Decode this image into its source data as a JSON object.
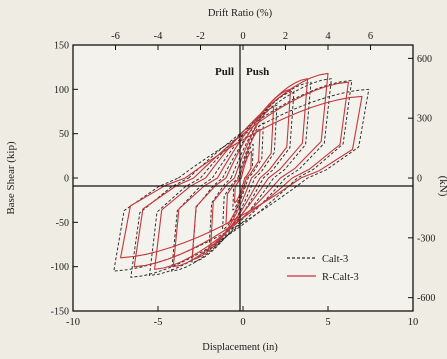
{
  "chart_data": {
    "type": "line",
    "top_axis": {
      "label": "Drift Ratio (%)",
      "range": [
        -8,
        8
      ],
      "ticks": [
        -6,
        -4,
        -2,
        0,
        2,
        4,
        6
      ],
      "tick_labels": [
        "-6",
        "-4",
        "-2",
        "0",
        "2",
        "4",
        "6"
      ]
    },
    "bottom_axis": {
      "label": "Displacement (in)",
      "range": [
        -10,
        10
      ],
      "ticks": [
        -10,
        -5,
        0,
        5,
        10
      ],
      "tick_labels": [
        "-10",
        "-5",
        "0",
        "5",
        "10"
      ]
    },
    "left_axis": {
      "label": "Base Shear (kip)",
      "range": [
        -150,
        150
      ],
      "ticks": [
        -150,
        -100,
        -50,
        0,
        50,
        100,
        150
      ],
      "tick_labels": [
        "-150",
        "-100",
        "-50",
        "0",
        "50",
        "100",
        "150"
      ]
    },
    "right_axis": {
      "label": "(kN)",
      "range": [
        -667,
        667
      ],
      "ticks": [
        -600,
        -300,
        0,
        300,
        600
      ],
      "tick_labels": [
        "-600",
        "-300",
        "0",
        "300",
        "600"
      ]
    },
    "annotations": {
      "pull": "Pull",
      "push": "Push"
    },
    "legend_position": "bottom-right",
    "grid": false,
    "series": [
      {
        "name": "Calt-3",
        "color": "#2a2a2a",
        "style": "dashed",
        "loops": [
          {
            "xmax": 0.6,
            "xmin": -0.6,
            "ypos": 38,
            "yneg": -36,
            "resid": 0.1
          },
          {
            "xmax": 1.2,
            "xmin": -1.2,
            "ypos": 62,
            "yneg": -58,
            "resid": 0.3
          },
          {
            "xmax": 2.0,
            "xmin": -2.0,
            "ypos": 82,
            "yneg": -80,
            "resid": 0.7
          },
          {
            "xmax": 3.0,
            "xmin": -3.0,
            "ypos": 98,
            "yneg": -95,
            "resid": 1.2
          },
          {
            "xmax": 4.0,
            "xmin": -4.2,
            "ypos": 108,
            "yneg": -105,
            "resid": 1.8
          },
          {
            "xmax": 5.2,
            "xmin": -5.5,
            "ypos": 112,
            "yneg": -110,
            "resid": 2.5
          },
          {
            "xmax": 6.4,
            "xmin": -6.6,
            "ypos": 110,
            "yneg": -112,
            "resid": 3.2
          },
          {
            "xmax": 7.4,
            "xmin": -7.6,
            "ypos": 100,
            "yneg": -105,
            "resid": 3.8
          }
        ]
      },
      {
        "name": "R-Calt-3",
        "color": "#c4373c",
        "style": "solid",
        "loops": [
          {
            "xmax": 0.5,
            "xmin": -0.5,
            "ypos": 30,
            "yneg": -28,
            "resid": 0.1
          },
          {
            "xmax": 1.0,
            "xmin": -1.0,
            "ypos": 55,
            "yneg": -52,
            "resid": 0.2
          },
          {
            "xmax": 1.8,
            "xmin": -1.9,
            "ypos": 80,
            "yneg": -76,
            "resid": 0.5
          },
          {
            "xmax": 2.8,
            "xmin": -3.0,
            "ypos": 100,
            "yneg": -92,
            "resid": 1.0
          },
          {
            "xmax": 3.8,
            "xmin": -4.1,
            "ypos": 112,
            "yneg": -100,
            "resid": 1.5
          },
          {
            "xmax": 5.0,
            "xmin": -5.2,
            "ypos": 118,
            "yneg": -103,
            "resid": 2.2
          },
          {
            "xmax": 6.2,
            "xmin": -6.4,
            "ypos": 108,
            "yneg": -100,
            "resid": 2.9
          },
          {
            "xmax": 7.0,
            "xmin": -7.2,
            "ypos": 92,
            "yneg": -90,
            "resid": 3.4
          }
        ]
      }
    ]
  }
}
